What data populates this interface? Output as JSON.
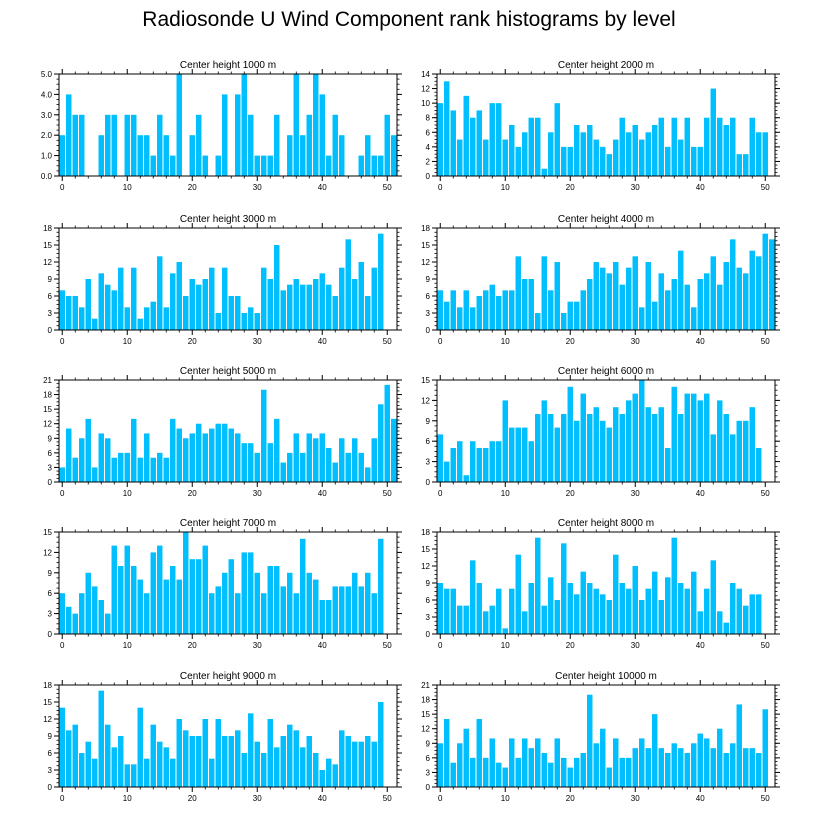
{
  "title": "Radiosonde U Wind Component rank histograms by level",
  "bar_color": "#00BFFF",
  "chart_data": [
    {
      "type": "bar",
      "title": "Center height 1000 m",
      "x_start": 0,
      "xlim": [
        -0.5,
        51.5
      ],
      "ylim": [
        0,
        5
      ],
      "yticks": [
        0,
        1,
        2,
        3,
        4,
        5
      ],
      "ytick_labels": [
        "0.0",
        "1.0",
        "2.0",
        "3.0",
        "4.0",
        "5.0"
      ],
      "xticks": [
        0,
        10,
        20,
        30,
        40,
        50
      ],
      "values": [
        2,
        4,
        3,
        3,
        0,
        0,
        2,
        3,
        3,
        0,
        3,
        3,
        2,
        2,
        1,
        3,
        2,
        1,
        5,
        0,
        2,
        3,
        1,
        0,
        1,
        4,
        0,
        4,
        5,
        3,
        1,
        1,
        1,
        3,
        0,
        2,
        5,
        2,
        3,
        5,
        4,
        1,
        3,
        2,
        0,
        0,
        1,
        2,
        1,
        1,
        3,
        2
      ]
    },
    {
      "type": "bar",
      "title": "Center height 2000 m",
      "x_start": 0,
      "xlim": [
        -0.5,
        51.5
      ],
      "ylim": [
        0,
        14
      ],
      "yticks": [
        0,
        2,
        4,
        6,
        8,
        10,
        12,
        14
      ],
      "ytick_labels": [
        "0",
        "2",
        "4",
        "6",
        "8",
        "10",
        "12",
        "14"
      ],
      "xticks": [
        0,
        10,
        20,
        30,
        40,
        50
      ],
      "values": [
        10,
        13,
        9,
        5,
        11,
        8,
        9,
        5,
        10,
        10,
        5,
        7,
        4,
        6,
        8,
        8,
        1,
        6,
        10,
        4,
        4,
        7,
        6,
        7,
        5,
        4,
        3,
        5,
        8,
        6,
        7,
        5,
        6,
        7,
        8,
        4,
        8,
        5,
        8,
        4,
        4,
        8,
        12,
        8,
        7,
        8,
        3,
        3,
        8,
        6,
        6,
        0
      ]
    },
    {
      "type": "bar",
      "title": "Center height 3000 m",
      "x_start": 0,
      "xlim": [
        -0.5,
        51.5
      ],
      "ylim": [
        0,
        18
      ],
      "yticks": [
        0,
        3,
        6,
        9,
        12,
        15,
        18
      ],
      "ytick_labels": [
        "0",
        "3",
        "6",
        "9",
        "12",
        "15",
        "18"
      ],
      "xticks": [
        0,
        10,
        20,
        30,
        40,
        50
      ],
      "values": [
        7,
        6,
        6,
        4,
        9,
        2,
        10,
        8,
        7,
        11,
        4,
        11,
        2,
        4,
        5,
        13,
        4,
        10,
        12,
        6,
        9,
        8,
        9,
        11,
        3,
        11,
        6,
        6,
        3,
        4,
        3,
        11,
        9,
        15,
        7,
        8,
        9,
        8,
        8,
        9,
        10,
        8,
        6,
        11,
        16,
        9,
        12,
        6,
        11,
        17,
        0,
        0
      ]
    },
    {
      "type": "bar",
      "title": "Center height 4000 m",
      "x_start": 0,
      "xlim": [
        -0.5,
        51.5
      ],
      "ylim": [
        0,
        18
      ],
      "yticks": [
        0,
        3,
        6,
        9,
        12,
        15,
        18
      ],
      "ytick_labels": [
        "0",
        "3",
        "6",
        "9",
        "12",
        "15",
        "18"
      ],
      "xticks": [
        0,
        10,
        20,
        30,
        40,
        50
      ],
      "values": [
        7,
        5,
        7,
        4,
        7,
        4,
        6,
        7,
        8,
        6,
        7,
        7,
        13,
        9,
        9,
        3,
        13,
        7,
        12,
        3,
        5,
        5,
        7,
        9,
        12,
        11,
        10,
        12,
        8,
        11,
        13,
        4,
        12,
        5,
        10,
        7,
        9,
        14,
        8,
        4,
        9,
        10,
        13,
        8,
        12,
        16,
        11,
        10,
        14,
        13,
        17,
        16
      ]
    },
    {
      "type": "bar",
      "title": "Center height 5000 m",
      "x_start": 0,
      "xlim": [
        -0.5,
        51.5
      ],
      "ylim": [
        0,
        21
      ],
      "yticks": [
        0,
        3,
        6,
        9,
        12,
        15,
        18,
        21
      ],
      "ytick_labels": [
        "0",
        "3",
        "6",
        "9",
        "12",
        "15",
        "18",
        "21"
      ],
      "xticks": [
        0,
        10,
        20,
        30,
        40,
        50
      ],
      "values": [
        3,
        11,
        5,
        9,
        13,
        3,
        10,
        9,
        5,
        6,
        6,
        13,
        5,
        10,
        5,
        6,
        5,
        13,
        11,
        9,
        10,
        12,
        10,
        11,
        12,
        12,
        11,
        10,
        8,
        8,
        6,
        19,
        8,
        13,
        4,
        6,
        10,
        6,
        10,
        9,
        10,
        7,
        4,
        9,
        6,
        9,
        6,
        3,
        9,
        16,
        20,
        13
      ]
    },
    {
      "type": "bar",
      "title": "Center height 6000 m",
      "x_start": 0,
      "xlim": [
        -0.5,
        51.5
      ],
      "ylim": [
        0,
        15
      ],
      "yticks": [
        0,
        3,
        6,
        9,
        12,
        15
      ],
      "ytick_labels": [
        "0",
        "3",
        "6",
        "9",
        "12",
        "15"
      ],
      "xticks": [
        0,
        10,
        20,
        30,
        40,
        50
      ],
      "values": [
        7,
        3,
        5,
        6,
        1,
        6,
        5,
        5,
        6,
        6,
        12,
        8,
        8,
        8,
        6,
        10,
        12,
        10,
        8,
        10,
        14,
        9,
        13,
        10,
        11,
        9,
        8,
        11,
        10,
        12,
        13,
        15,
        11,
        10,
        11,
        5,
        14,
        10,
        13,
        13,
        12,
        13,
        7,
        12,
        10,
        7,
        9,
        9,
        11,
        5,
        0,
        0
      ]
    },
    {
      "type": "bar",
      "title": "Center height 7000 m",
      "x_start": 0,
      "xlim": [
        -0.5,
        51.5
      ],
      "ylim": [
        0,
        15
      ],
      "yticks": [
        0,
        3,
        6,
        9,
        12,
        15
      ],
      "ytick_labels": [
        "0",
        "3",
        "6",
        "9",
        "12",
        "15"
      ],
      "xticks": [
        0,
        10,
        20,
        30,
        40,
        50
      ],
      "values": [
        6,
        4,
        3,
        6,
        9,
        7,
        5,
        3,
        13,
        10,
        13,
        10,
        8,
        6,
        12,
        13,
        8,
        10,
        8,
        15,
        11,
        11,
        13,
        6,
        7,
        9,
        11,
        6,
        12,
        12,
        9,
        6,
        10,
        10,
        7,
        9,
        6,
        14,
        9,
        8,
        5,
        5,
        7,
        7,
        7,
        9,
        7,
        9,
        6,
        14,
        0,
        0
      ]
    },
    {
      "type": "bar",
      "title": "Center height 8000 m",
      "x_start": 0,
      "xlim": [
        -0.5,
        51.5
      ],
      "ylim": [
        0,
        18
      ],
      "yticks": [
        0,
        3,
        6,
        9,
        12,
        15,
        18
      ],
      "ytick_labels": [
        "0",
        "3",
        "6",
        "9",
        "12",
        "15",
        "18"
      ],
      "xticks": [
        0,
        10,
        20,
        30,
        40,
        50
      ],
      "values": [
        9,
        8,
        8,
        5,
        5,
        13,
        9,
        4,
        5,
        8,
        1,
        8,
        14,
        4,
        9,
        17,
        5,
        10,
        6,
        16,
        9,
        7,
        11,
        9,
        8,
        7,
        6,
        14,
        9,
        8,
        12,
        6,
        8,
        11,
        6,
        10,
        17,
        9,
        8,
        11,
        4,
        8,
        13,
        4,
        2,
        9,
        8,
        5,
        7,
        7,
        0,
        0
      ]
    },
    {
      "type": "bar",
      "title": "Center height 9000 m",
      "x_start": 0,
      "xlim": [
        -0.5,
        51.5
      ],
      "ylim": [
        0,
        18
      ],
      "yticks": [
        0,
        3,
        6,
        9,
        12,
        15,
        18
      ],
      "ytick_labels": [
        "0",
        "3",
        "6",
        "9",
        "12",
        "15",
        "18"
      ],
      "xticks": [
        0,
        10,
        20,
        30,
        40,
        50
      ],
      "values": [
        14,
        10,
        11,
        6,
        8,
        5,
        17,
        11,
        7,
        9,
        4,
        4,
        14,
        5,
        11,
        8,
        7,
        5,
        12,
        10,
        9,
        9,
        12,
        5,
        12,
        9,
        9,
        10,
        6,
        13,
        8,
        6,
        12,
        7,
        9,
        11,
        10,
        7,
        9,
        6,
        3,
        5,
        4,
        10,
        9,
        8,
        8,
        9,
        8,
        15,
        0,
        0
      ]
    },
    {
      "type": "bar",
      "title": "Center height 10000 m",
      "x_start": 0,
      "xlim": [
        -0.5,
        51.5
      ],
      "ylim": [
        0,
        21
      ],
      "yticks": [
        0,
        3,
        6,
        9,
        12,
        15,
        18,
        21
      ],
      "ytick_labels": [
        "0",
        "3",
        "6",
        "9",
        "12",
        "15",
        "18",
        "21"
      ],
      "xticks": [
        0,
        10,
        20,
        30,
        40,
        50
      ],
      "values": [
        9,
        14,
        5,
        9,
        12,
        6,
        14,
        6,
        10,
        5,
        4,
        10,
        6,
        10,
        8,
        10,
        7,
        5,
        10,
        6,
        4,
        6,
        7,
        19,
        9,
        12,
        4,
        10,
        6,
        6,
        8,
        10,
        8,
        15,
        8,
        7,
        9,
        8,
        7,
        9,
        11,
        10,
        8,
        12,
        7,
        9,
        17,
        8,
        8,
        7,
        16,
        0
      ]
    }
  ]
}
